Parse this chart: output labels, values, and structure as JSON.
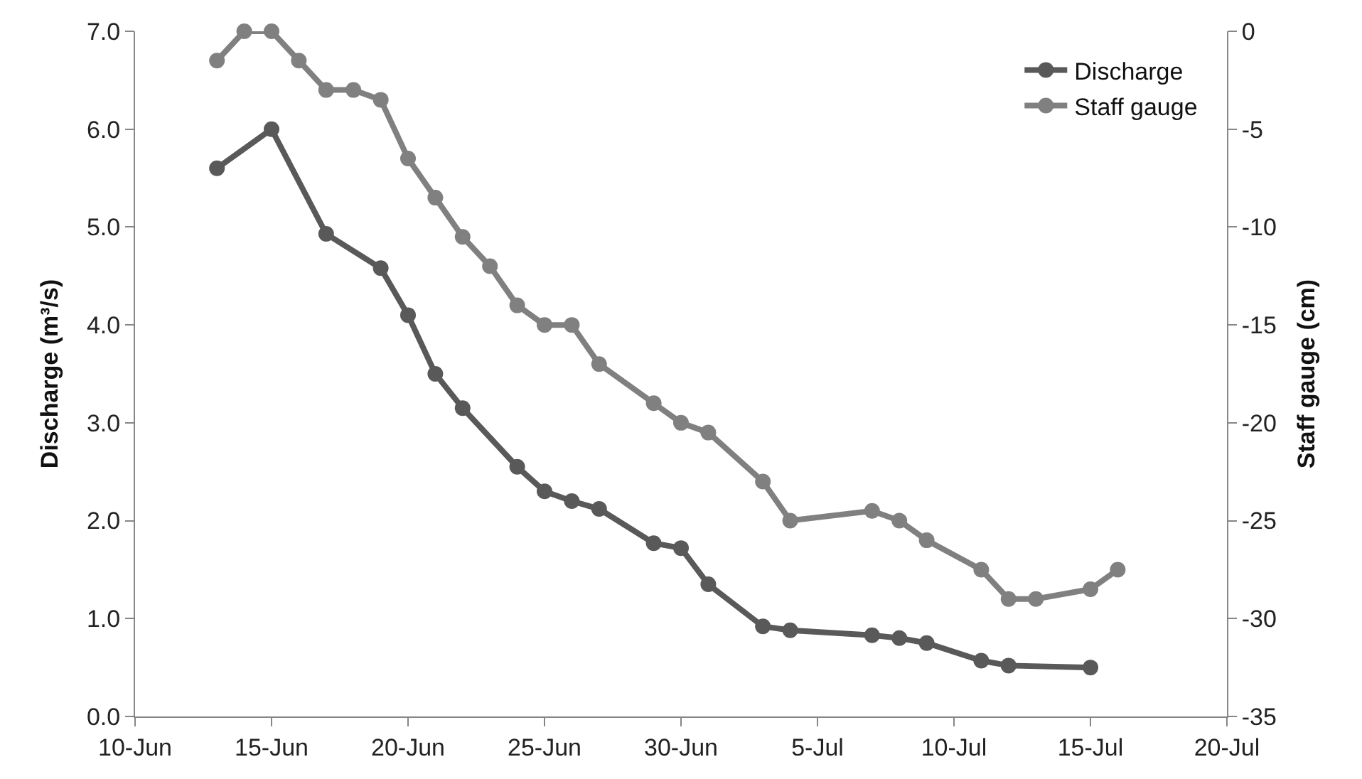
{
  "chart_data": {
    "type": "line",
    "ylabel": "Discharge (m³/s)",
    "y2label": "Staff gauge (cm)",
    "xlim": [
      "--06-10",
      "--07-20"
    ],
    "xticks": [
      {
        "value": "--06-10",
        "label": "10-Jun"
      },
      {
        "value": "--06-15",
        "label": "15-Jun"
      },
      {
        "value": "--06-20",
        "label": "20-Jun"
      },
      {
        "value": "--06-25",
        "label": "25-Jun"
      },
      {
        "value": "--06-30",
        "label": "30-Jun"
      },
      {
        "value": "--07-05",
        "label": "5-Jul"
      },
      {
        "value": "--07-10",
        "label": "10-Jul"
      },
      {
        "value": "--07-15",
        "label": "15-Jul"
      },
      {
        "value": "--07-20",
        "label": "20-Jul"
      }
    ],
    "ylim": [
      0,
      7
    ],
    "yticks": [
      {
        "value": 0,
        "label": "0.0"
      },
      {
        "value": 1,
        "label": "1.0"
      },
      {
        "value": 2,
        "label": "2.0"
      },
      {
        "value": 3,
        "label": "3.0"
      },
      {
        "value": 4,
        "label": "4.0"
      },
      {
        "value": 5,
        "label": "5.0"
      },
      {
        "value": 6,
        "label": "6.0"
      },
      {
        "value": 7,
        "label": "7.0"
      }
    ],
    "y2lim": [
      -35,
      0
    ],
    "y2ticks": [
      -35,
      -30,
      -25,
      -20,
      -15,
      -10,
      -5,
      0
    ],
    "legend": "top right",
    "marker": "circle",
    "line_style": "solid",
    "series": [
      {
        "name": "Discharge",
        "color": "#595959",
        "x": [
          "--06-13",
          "--06-15",
          "--06-17",
          "--06-19",
          "--06-20",
          "--06-21",
          "--06-22",
          "--06-24",
          "--06-25",
          "--06-26",
          "--06-27",
          "--06-29",
          "--06-30",
          "--07-01",
          "--07-03",
          "--07-04",
          "--07-07",
          "--07-08",
          "--07-09",
          "--07-11",
          "--07-12",
          "--07-15"
        ],
        "values": [
          5.6,
          6.0,
          4.93,
          4.58,
          4.1,
          3.5,
          3.15,
          2.55,
          2.3,
          2.2,
          2.12,
          1.77,
          1.72,
          1.35,
          0.92,
          0.88,
          0.83,
          0.8,
          0.75,
          0.57,
          0.52,
          0.5
        ]
      },
      {
        "name": "Staff gauge",
        "color": "#808080",
        "axis": "y2",
        "x": [
          "--06-13",
          "--06-14",
          "--06-15",
          "--06-16",
          "--06-17",
          "--06-18",
          "--06-19",
          "--06-20",
          "--06-21",
          "--06-22",
          "--06-23",
          "--06-24",
          "--06-25",
          "--06-26",
          "--06-27",
          "--06-29",
          "--06-30",
          "--07-01",
          "--07-03",
          "--07-04",
          "--07-07",
          "--07-08",
          "--07-09",
          "--07-11",
          "--07-12",
          "--07-13",
          "--07-15",
          "--07-16"
        ],
        "values": [
          -1.5,
          0,
          0,
          -1.5,
          -3,
          -3,
          -3.5,
          -6.5,
          -8.5,
          -10.5,
          -12,
          -14,
          -15,
          -15,
          -17,
          -19,
          -20,
          -20.5,
          -23,
          -25,
          -24.5,
          -25,
          -26,
          -27.5,
          -29,
          -29,
          -28.5,
          -27.5
        ]
      }
    ]
  }
}
